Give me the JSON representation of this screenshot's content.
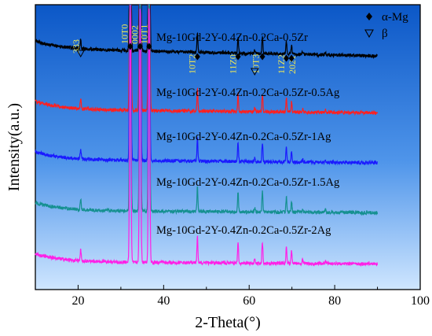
{
  "chart_data": {
    "type": "line",
    "xlabel": "2-Theta(°)",
    "ylabel": "Intensity(a.u.)",
    "xlim": [
      10,
      100
    ],
    "x_ticks": [
      20,
      40,
      60,
      80,
      100
    ],
    "grid": false,
    "legend": {
      "position": "top-right",
      "entries": [
        {
          "marker": "filled-diamond",
          "label": "α-Mg"
        },
        {
          "marker": "open-triangle-down",
          "label": "β"
        }
      ]
    },
    "series": [
      {
        "name": "Mg-10Gd-2Y-0.4Zn-0.2Ca-0.5Zr",
        "color": "#000000",
        "baseline": 0.82,
        "slope": 0.1
      },
      {
        "name": "Mg-10Gd-2Y-0.4Zn-0.2Ca-0.5Zr-0.5Ag",
        "color": "#ff2020",
        "baseline": 0.62,
        "slope": 0.05
      },
      {
        "name": "Mg-10Gd-2Y-0.4Zn-0.2Ca-0.5Zr-1Ag",
        "color": "#1a1aff",
        "baseline": 0.445,
        "slope": 0.045
      },
      {
        "name": "Mg-10Gd-2Y-0.4Zn-0.2Ca-0.5Zr-1.5Ag",
        "color": "#159090",
        "baseline": 0.27,
        "slope": 0.03
      },
      {
        "name": "Mg-10Gd-2Y-0.4Zn-0.2Ca-0.5Zr-2Ag",
        "color": "#ff20e6",
        "baseline": 0.09,
        "slope": 0.03
      }
    ],
    "peaks": [
      {
        "x": 20.6,
        "rel": 0.1
      },
      {
        "x": 32.2,
        "rel": 2.5
      },
      {
        "x": 34.5,
        "rel": 2.5
      },
      {
        "x": 36.6,
        "rel": 2.5
      },
      {
        "x": 47.9,
        "rel": 0.22
      },
      {
        "x": 57.4,
        "rel": 0.18
      },
      {
        "x": 61.3,
        "rel": 0.04
      },
      {
        "x": 63.1,
        "rel": 0.18
      },
      {
        "x": 68.7,
        "rel": 0.14
      },
      {
        "x": 69.9,
        "rel": 0.1
      },
      {
        "x": 72.5,
        "rel": 0.03
      },
      {
        "x": 77.8,
        "rel": 0.025
      }
    ],
    "markers": [
      {
        "type": "beta",
        "x": 20.6
      },
      {
        "type": "alpha",
        "x": 32.2
      },
      {
        "type": "alpha",
        "x": 34.5
      },
      {
        "type": "alpha",
        "x": 36.6
      },
      {
        "type": "alpha",
        "x": 47.9
      },
      {
        "type": "alpha",
        "x": 57.4
      },
      {
        "type": "beta",
        "x": 61.3
      },
      {
        "type": "alpha",
        "x": 63.1
      },
      {
        "type": "alpha",
        "x": 68.7
      },
      {
        "type": "alpha",
        "x": 69.9
      }
    ],
    "annotations": [
      {
        "text": "333",
        "x": 20.3
      },
      {
        "text": "10T0",
        "x": 31.6
      },
      {
        "text": "0002",
        "x": 34.0
      },
      {
        "text": "10T1",
        "x": 36.2
      },
      {
        "text": "10T2",
        "x": 47.4
      },
      {
        "text": "11Z0",
        "x": 56.9
      },
      {
        "text": "10T3",
        "x": 62.3
      },
      {
        "text": "11Z2",
        "x": 68.2
      },
      {
        "text": "2021",
        "x": 70.8
      }
    ]
  }
}
